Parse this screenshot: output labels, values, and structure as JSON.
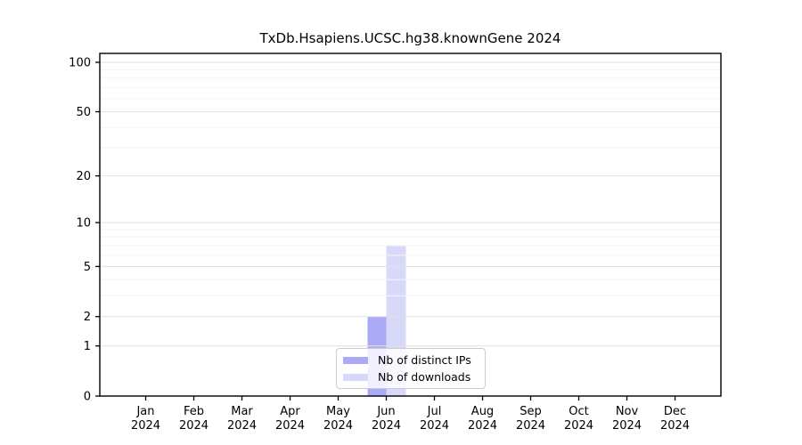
{
  "figure": {
    "background": "#ffffff"
  },
  "chart_data": {
    "type": "bar",
    "title": "TxDb.Hsapiens.UCSC.hg38.knownGene 2024",
    "categories": [
      "Jan",
      "Feb",
      "Mar",
      "Apr",
      "May",
      "Jun",
      "Jul",
      "Aug",
      "Sep",
      "Oct",
      "Nov",
      "Dec"
    ],
    "category_year": "2024",
    "series": [
      {
        "name": "Nb of distinct IPs",
        "color": "#aaaaf6",
        "values": [
          0,
          0,
          0,
          0,
          0,
          2,
          0,
          0,
          0,
          0,
          0,
          0
        ]
      },
      {
        "name": "Nb of downloads",
        "color": "#d8d8f9",
        "values": [
          0,
          0,
          0,
          0,
          0,
          7,
          0,
          0,
          0,
          0,
          0,
          0
        ]
      }
    ],
    "yscale": "log1p",
    "ylim": [
      0,
      112
    ],
    "yticks_major": [
      0,
      1,
      2,
      5,
      10,
      20,
      50,
      100
    ],
    "yticks_minor": [
      3,
      4,
      6,
      7,
      8,
      9,
      30,
      40,
      60,
      70,
      80,
      90
    ],
    "xlabel": "",
    "ylabel": "",
    "grid": true,
    "legend_position": "lower-center"
  },
  "colors": {
    "axis": "#000000",
    "tick_label": "#000000",
    "major_grid": "#e2e2e2",
    "minor_grid": "#f5f5f5",
    "legend_border": "#cccccc"
  }
}
